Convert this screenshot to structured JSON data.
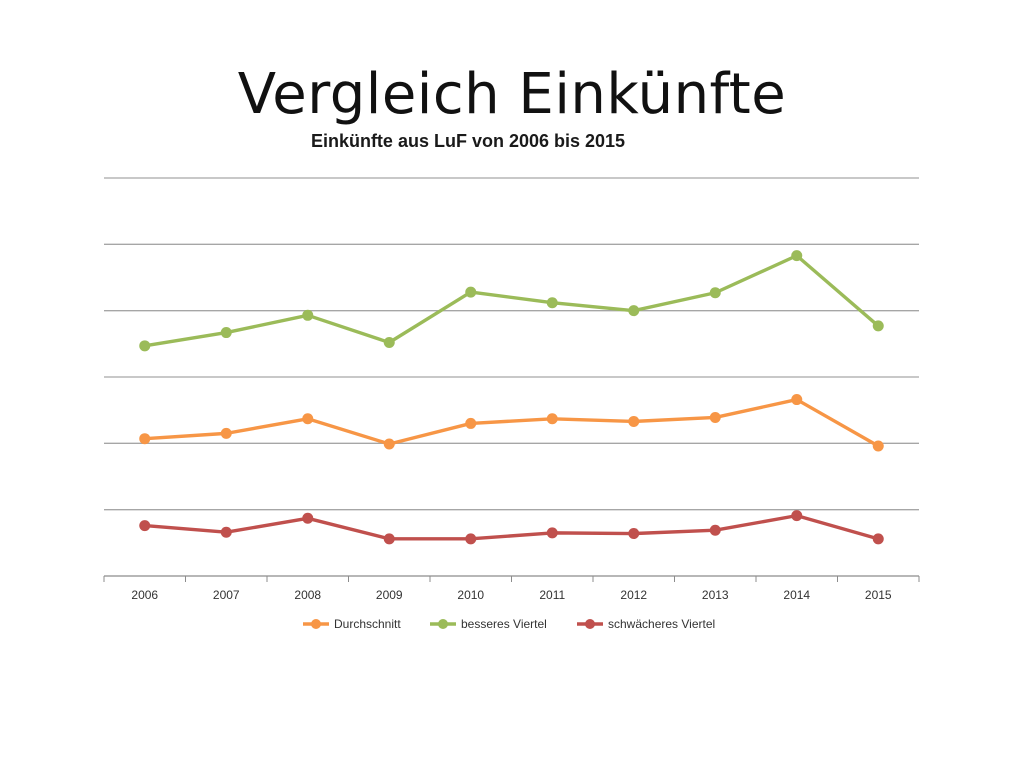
{
  "slide": {
    "title": "Vergleich Einkünfte"
  },
  "chart_data": {
    "type": "line",
    "title": "Einkünfte aus LuF von 2006 bis 2015",
    "xlabel": "",
    "ylabel": "",
    "y_axis_note": "no tick labels printed; values are in gridline units (0 = baseline, 6 = top gridline), estimated",
    "ylim": [
      0,
      6
    ],
    "grid": true,
    "legend_position": "bottom",
    "categories": [
      "2006",
      "2007",
      "2008",
      "2009",
      "2010",
      "2011",
      "2012",
      "2013",
      "2014",
      "2015"
    ],
    "series": [
      {
        "name": "Durchschnitt",
        "color": "#F79646",
        "values": [
          2.07,
          2.15,
          2.37,
          1.99,
          2.3,
          2.37,
          2.33,
          2.39,
          2.66,
          1.96
        ]
      },
      {
        "name": "besseres Viertel",
        "color": "#9BBB59",
        "values": [
          3.47,
          3.67,
          3.93,
          3.52,
          4.28,
          4.12,
          4.0,
          4.27,
          4.83,
          3.77
        ]
      },
      {
        "name": "schwächeres Viertel",
        "color": "#C0504D",
        "values": [
          0.76,
          0.66,
          0.87,
          0.56,
          0.56,
          0.65,
          0.64,
          0.69,
          0.91,
          0.56
        ]
      }
    ]
  }
}
